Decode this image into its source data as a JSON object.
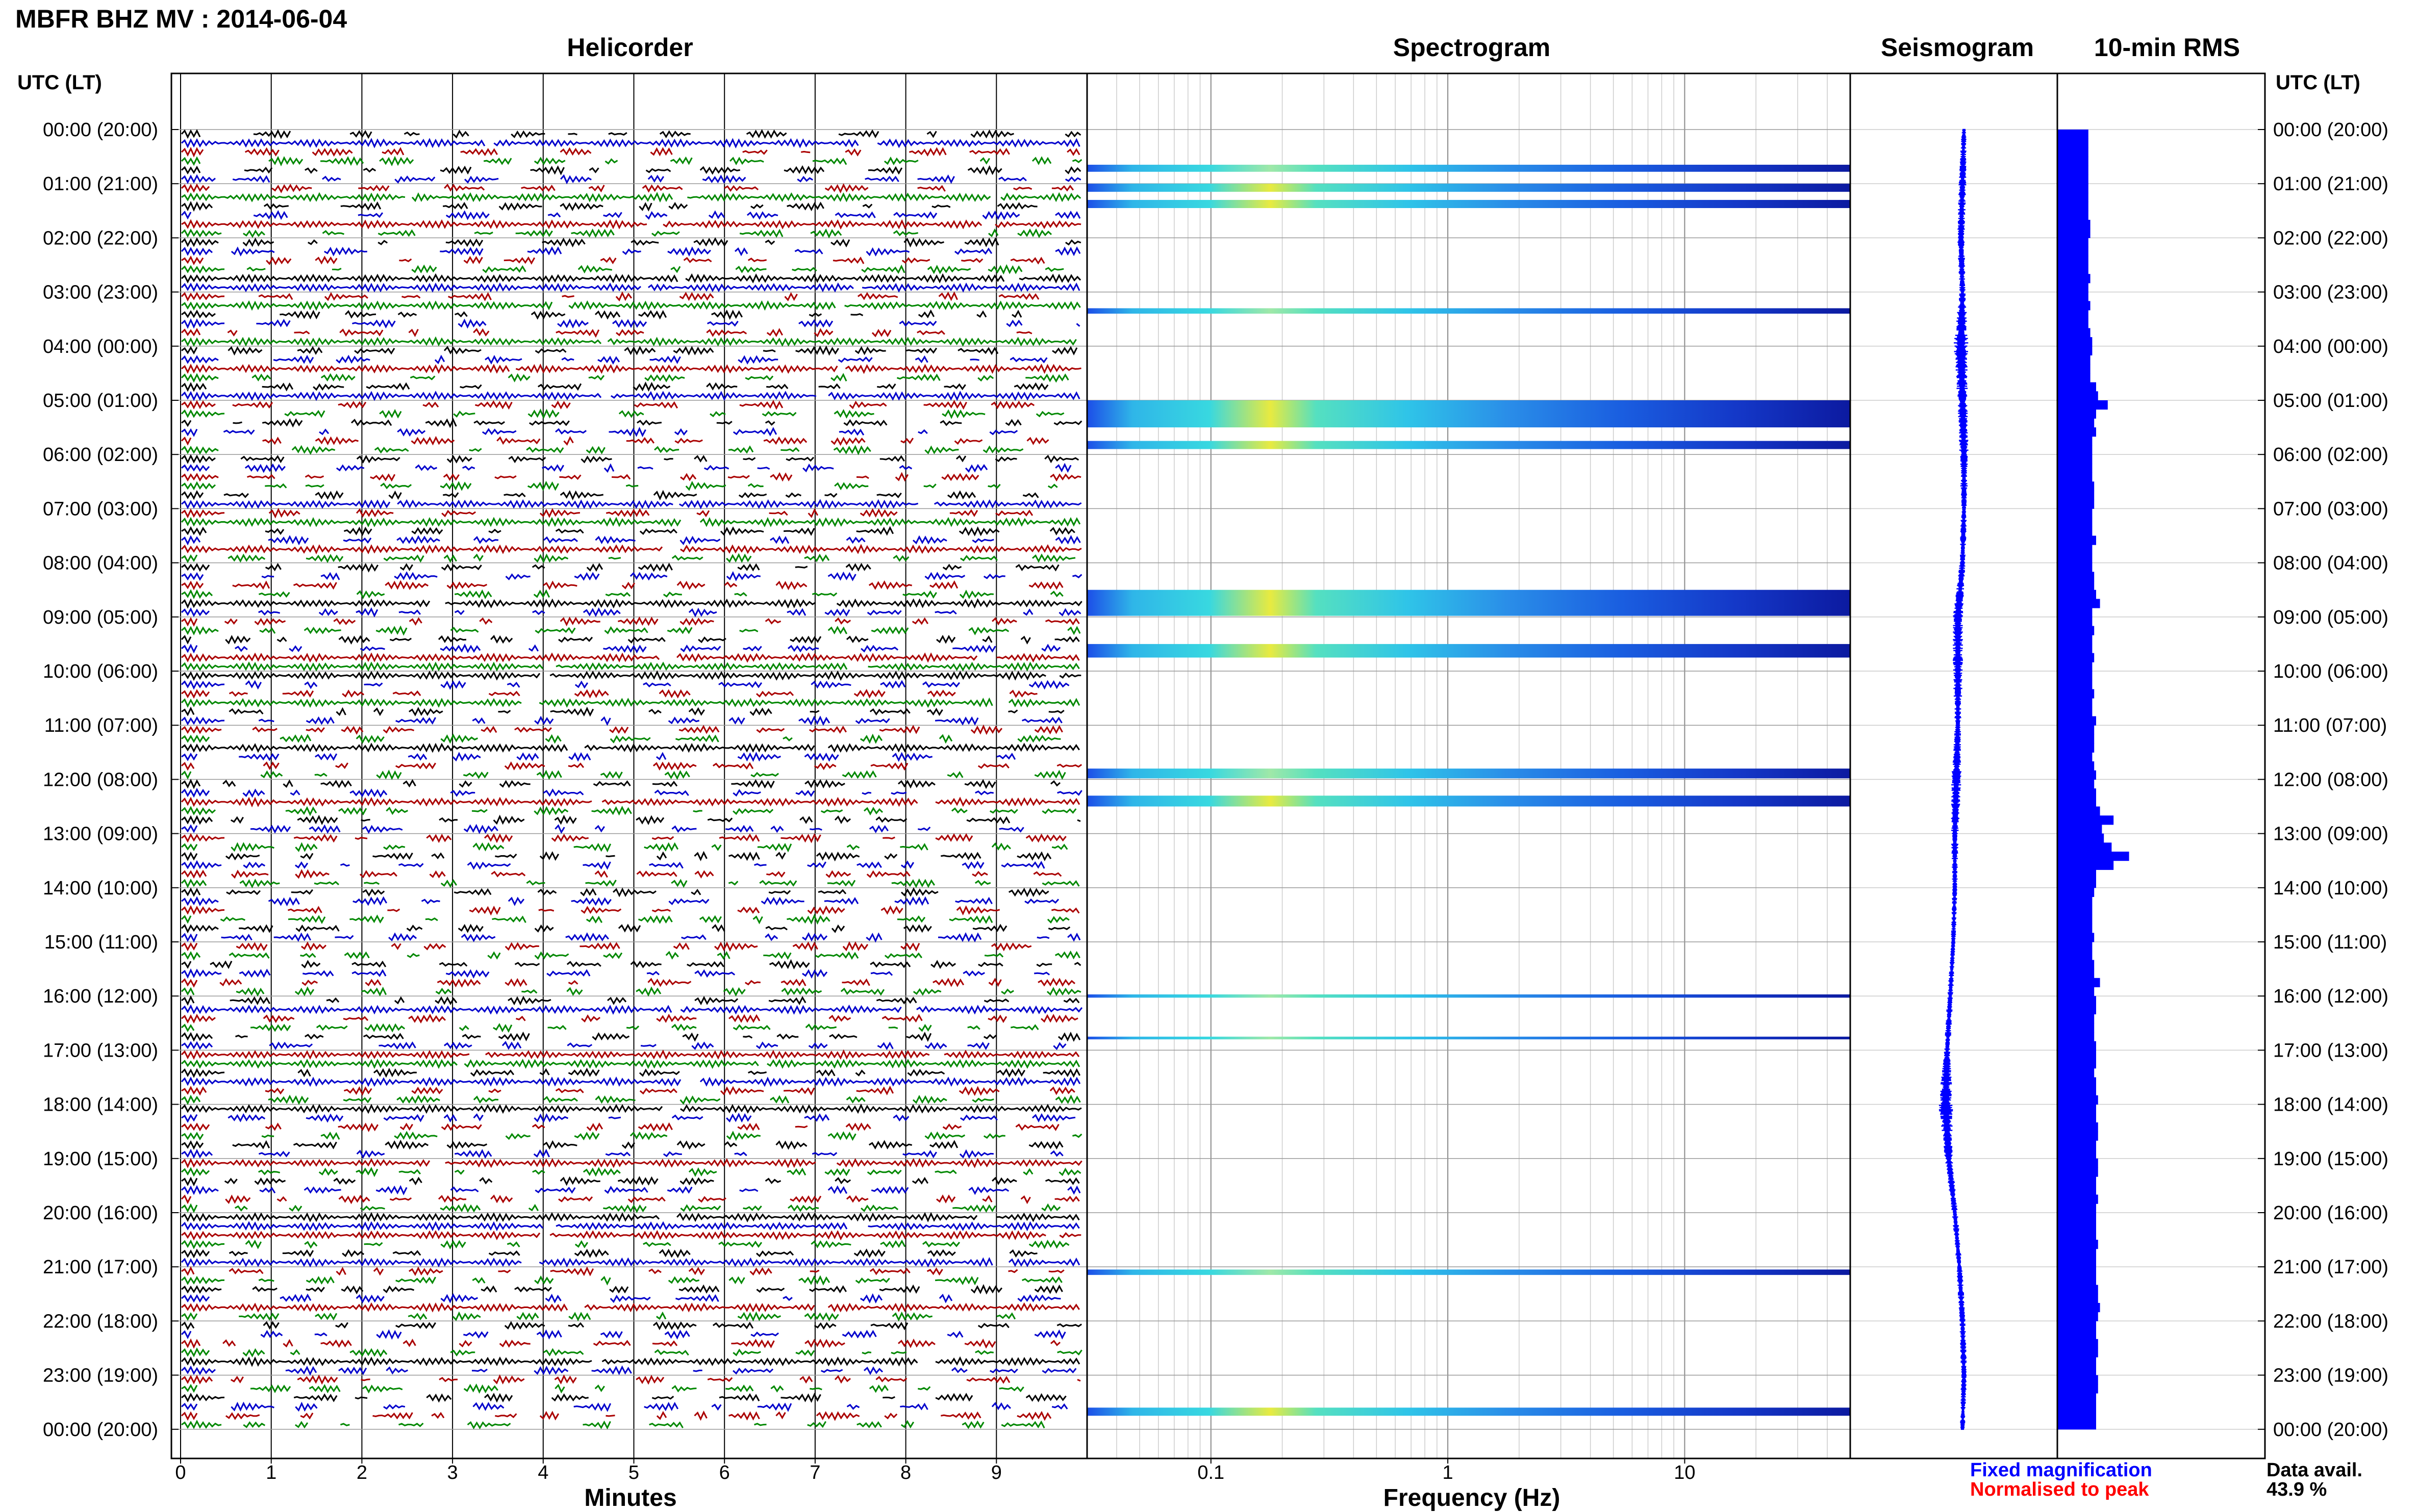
{
  "header": {
    "title": "MBFR BHZ MV : 2014-06-04"
  },
  "panels": {
    "helicorder": "Helicorder",
    "spectrogram": "Spectrogram",
    "seismogram": "Seismogram",
    "rms": "10-min RMS"
  },
  "axes": {
    "left_header": "UTC (LT)",
    "right_header": "UTC (LT)",
    "minutes_label": "Minutes",
    "frequency_label": "Frequency (Hz)"
  },
  "legend": {
    "fixed": "Fixed magnification",
    "normalised": "Normalised to peak",
    "fixed_color": "#0000ff",
    "normalised_color": "#ff0000"
  },
  "data_availability": {
    "label": "Data avail.",
    "value": "43.9 %"
  },
  "colors": {
    "trace_cycle": [
      "#000000",
      "#0000cc",
      "#aa0000",
      "#008800"
    ],
    "rms_bar": "#0000ff",
    "seismogram": "#0000ff"
  },
  "chart_data": [
    {
      "type": "line",
      "name": "helicorder",
      "title": "Helicorder",
      "xlabel": "Minutes",
      "xlim": [
        0,
        10
      ],
      "x_ticks": [
        0,
        1,
        2,
        3,
        4,
        5,
        6,
        7,
        8,
        9
      ],
      "rows_per_hour": 6,
      "y_labels": [
        "00:00 (20:00)",
        "01:00 (21:00)",
        "02:00 (22:00)",
        "03:00 (23:00)",
        "04:00 (00:00)",
        "05:00 (01:00)",
        "06:00 (02:00)",
        "07:00 (03:00)",
        "08:00 (04:00)",
        "09:00 (05:00)",
        "10:00 (06:00)",
        "11:00 (07:00)",
        "12:00 (08:00)",
        "13:00 (09:00)",
        "14:00 (10:00)",
        "15:00 (11:00)",
        "16:00 (12:00)",
        "17:00 (13:00)",
        "18:00 (14:00)",
        "19:00 (15:00)",
        "20:00 (16:00)",
        "21:00 (17:00)",
        "22:00 (18:00)",
        "23:00 (19:00)",
        "00:00 (20:00)"
      ]
    },
    {
      "type": "heatmap",
      "name": "spectrogram",
      "title": "Spectrogram",
      "xlabel": "Frequency (Hz)",
      "x_scale": "log",
      "xlim": [
        0.03,
        50
      ],
      "x_ticks": [
        0.1,
        1,
        10
      ],
      "x_tick_labels": [
        "0.1",
        "1",
        "10"
      ],
      "bands": [
        {
          "start_hour": 0.65,
          "end_hour": 0.78,
          "intensity": 0.3
        },
        {
          "start_hour": 1.0,
          "end_hour": 1.15,
          "intensity": 0.6
        },
        {
          "start_hour": 1.3,
          "end_hour": 1.45,
          "intensity": 0.6
        },
        {
          "start_hour": 3.3,
          "end_hour": 3.4,
          "intensity": 0.4
        },
        {
          "start_hour": 5.0,
          "end_hour": 5.5,
          "intensity": 0.9
        },
        {
          "start_hour": 5.75,
          "end_hour": 5.9,
          "intensity": 0.6
        },
        {
          "start_hour": 8.5,
          "end_hour": 8.98,
          "intensity": 0.9
        },
        {
          "start_hour": 9.5,
          "end_hour": 9.75,
          "intensity": 0.9
        },
        {
          "start_hour": 11.8,
          "end_hour": 11.98,
          "intensity": 0.5
        },
        {
          "start_hour": 12.3,
          "end_hour": 12.5,
          "intensity": 0.6
        },
        {
          "start_hour": 15.97,
          "end_hour": 16.03,
          "intensity": 0.2
        },
        {
          "start_hour": 16.75,
          "end_hour": 16.8,
          "intensity": 0.2
        },
        {
          "start_hour": 21.05,
          "end_hour": 21.15,
          "intensity": 0.5
        },
        {
          "start_hour": 23.6,
          "end_hour": 23.75,
          "intensity": 0.6
        }
      ]
    },
    {
      "type": "line",
      "name": "seismogram",
      "title": "Seismogram",
      "hours": [
        0,
        1,
        2,
        3,
        4,
        5,
        6,
        7,
        8,
        9,
        10,
        11,
        12,
        13,
        14,
        15,
        16,
        17,
        18,
        19,
        20,
        21,
        22,
        23,
        24
      ],
      "offset": [
        0.0,
        -0.05,
        -0.1,
        -0.05,
        -0.1,
        -0.05,
        0.0,
        0.0,
        -0.05,
        -0.2,
        -0.2,
        -0.2,
        -0.25,
        -0.3,
        -0.3,
        -0.35,
        -0.45,
        -0.55,
        -0.6,
        -0.5,
        -0.3,
        -0.15,
        -0.05,
        0.0,
        -0.05
      ],
      "amplitude": [
        0.1,
        0.15,
        0.15,
        0.12,
        0.3,
        0.2,
        0.18,
        0.12,
        0.12,
        0.2,
        0.2,
        0.12,
        0.2,
        0.15,
        0.1,
        0.1,
        0.12,
        0.12,
        0.3,
        0.15,
        0.12,
        0.12,
        0.12,
        0.12,
        0.1
      ]
    },
    {
      "type": "bar",
      "name": "rms",
      "title": "10-min RMS",
      "orientation": "horizontal",
      "interval_minutes": 10,
      "values": [
        0.8,
        0.8,
        0.8,
        0.8,
        0.8,
        0.8,
        0.8,
        0.8,
        0.8,
        0.8,
        0.85,
        0.85,
        0.8,
        0.8,
        0.8,
        0.8,
        0.85,
        0.8,
        0.8,
        0.85,
        0.8,
        0.8,
        0.85,
        0.9,
        0.9,
        0.85,
        0.85,
        0.85,
        1.0,
        1.05,
        1.3,
        1.0,
        0.95,
        1.0,
        0.9,
        0.9,
        0.9,
        0.9,
        0.9,
        0.95,
        0.95,
        0.95,
        0.9,
        0.9,
        0.9,
        1.0,
        0.9,
        0.9,
        0.9,
        0.95,
        0.95,
        1.0,
        1.1,
        0.9,
        0.9,
        0.95,
        0.9,
        0.9,
        0.95,
        0.9,
        0.9,
        0.9,
        0.95,
        0.9,
        0.9,
        1.0,
        0.95,
        0.95,
        0.95,
        0.9,
        0.95,
        1.0,
        0.95,
        1.0,
        1.0,
        1.1,
        1.45,
        1.15,
        1.2,
        1.4,
        1.85,
        1.45,
        1.0,
        1.0,
        0.95,
        0.9,
        0.9,
        0.9,
        0.9,
        0.95,
        0.9,
        0.9,
        0.95,
        0.95,
        1.1,
        0.95,
        1.0,
        1.0,
        0.95,
        0.95,
        0.95,
        1.0,
        1.0,
        1.0,
        0.95,
        1.0,
        1.0,
        1.05,
        1.0,
        1.0,
        1.05,
        1.05,
        1.0,
        1.0,
        1.05,
        1.05,
        1.0,
        1.0,
        1.05,
        1.0,
        1.0,
        1.0,
        1.0,
        1.05,
        1.0,
        1.0,
        1.0,
        1.0,
        1.05,
        1.05,
        1.1,
        1.05,
        1.0,
        1.0,
        1.05,
        1.05,
        1.0,
        1.0,
        1.05,
        1.05,
        1.0,
        1.0,
        1.0,
        1.0
      ]
    }
  ]
}
